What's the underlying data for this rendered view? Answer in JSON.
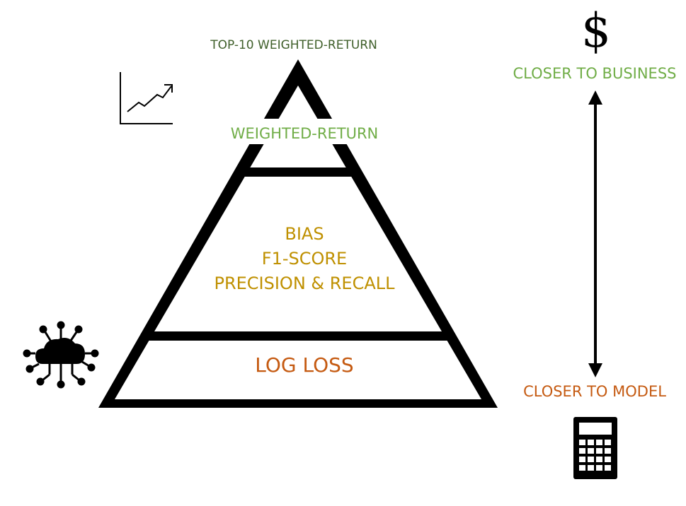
{
  "pyramid": {
    "top_label": "TOP-10 WEIGHTED-RETURN",
    "level_weighted_return": "WEIGHTED-RETURN",
    "level_metrics": [
      "BIAS",
      "F1-SCORE",
      "PRECISION & RECALL"
    ],
    "level_log_loss": "LOG LOSS"
  },
  "scale": {
    "top_label": "CLOSER TO BUSINESS",
    "bottom_label": "CLOSER TO MODEL",
    "top_icon": "dollar-icon",
    "bottom_icon": "calculator-icon"
  },
  "icons": {
    "chart": "trend-chart-icon",
    "cloud": "cloud-network-icon",
    "dollar_glyph": "$"
  },
  "colors": {
    "dark_green": "#3f5f2a",
    "green": "#70ad47",
    "gold": "#bf9000",
    "orange": "#c55a11",
    "outline": "#000000"
  }
}
